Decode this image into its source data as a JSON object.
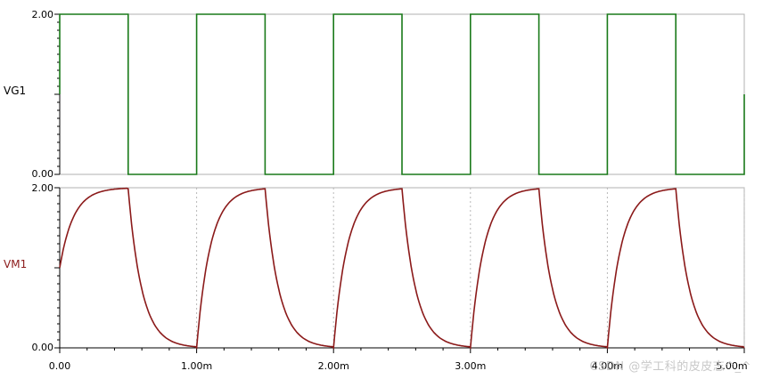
{
  "chart_data": [
    {
      "type": "line",
      "signal": "VG1",
      "color": "#1a7a1a",
      "ylim": [
        0,
        2
      ],
      "y_ticks": [
        "0.00",
        "2.00"
      ],
      "x_range": [
        0,
        5
      ],
      "x_unit": "ms",
      "waveform": "square",
      "period_ms": 1.0,
      "high": 2.0,
      "low": 0.0,
      "points_ms": [
        [
          0,
          2
        ],
        [
          0.5,
          2
        ],
        [
          0.5,
          0
        ],
        [
          1.0,
          0
        ],
        [
          1.0,
          2
        ],
        [
          1.5,
          2
        ],
        [
          1.5,
          0
        ],
        [
          2.0,
          0
        ],
        [
          2.0,
          2
        ],
        [
          2.5,
          2
        ],
        [
          2.5,
          0
        ],
        [
          3.0,
          0
        ],
        [
          3.0,
          2
        ],
        [
          3.5,
          2
        ],
        [
          3.5,
          0
        ],
        [
          4.0,
          0
        ],
        [
          4.0,
          2
        ],
        [
          4.5,
          2
        ],
        [
          4.5,
          0
        ],
        [
          5.0,
          0
        ],
        [
          5.0,
          1
        ]
      ],
      "grid": false
    },
    {
      "type": "line",
      "signal": "VM1",
      "color": "#8b1a1a",
      "ylim": [
        0,
        2
      ],
      "y_ticks": [
        "0.00",
        "2.00"
      ],
      "x_range": [
        0,
        5
      ],
      "x_unit": "ms",
      "x_ticks": [
        "0.00",
        "1.00m",
        "2.00m",
        "3.00m",
        "4.00m",
        "5.00m"
      ],
      "waveform": "rc_charge_discharge",
      "start_value": 1.0,
      "high": 2.0,
      "low": 0.0,
      "tau_ms": 0.1,
      "grid": "vertical-dashed"
    }
  ],
  "labels": {
    "top_signal": "VG1",
    "bottom_signal": "VM1",
    "top_y_max": "2.00",
    "top_y_min": "0.00",
    "bottom_y_max": "2.00",
    "bottom_y_min": "0.00"
  },
  "watermark": "CSDN @学工科的皮皮志^_^"
}
